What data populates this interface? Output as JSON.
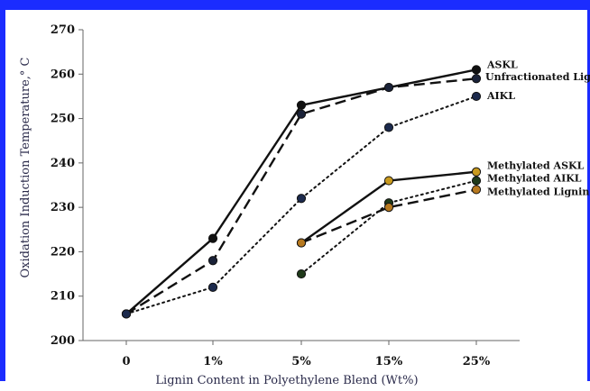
{
  "chart_data": {
    "type": "line",
    "categories": [
      "0",
      "1%",
      "5%",
      "15%",
      "25%"
    ],
    "xlabel": "Lignin Content in Polyethylene Blend (Wt%)",
    "ylabel": "Oxidation Induction Temperature,° C",
    "ylim": [
      200,
      270
    ],
    "yticks": [
      200,
      210,
      220,
      230,
      240,
      250,
      260,
      270
    ],
    "grid": false,
    "series": [
      {
        "name": "ASKL",
        "values": [
          206,
          223,
          253,
          257,
          261
        ],
        "line": "solid",
        "marker_color": "#111111"
      },
      {
        "name": "Unfractionated Lignin",
        "values": [
          206,
          218,
          251,
          257,
          259
        ],
        "line": "dashed",
        "marker_color": "#1a2238"
      },
      {
        "name": "AIKL",
        "values": [
          206,
          212,
          232,
          248,
          255
        ],
        "line": "dotted",
        "marker_color": "#1c2a4d"
      },
      {
        "name": "Methylated ASKL",
        "values": [
          null,
          null,
          222,
          236,
          238
        ],
        "line": "solid",
        "marker_color": "#c99a1e"
      },
      {
        "name": "Methylated AIKL",
        "values": [
          null,
          null,
          215,
          231,
          236
        ],
        "line": "dotted",
        "marker_color": "#1f3a1a"
      },
      {
        "name": "Methylated Lignin",
        "values": [
          null,
          null,
          222,
          230,
          234
        ],
        "line": "dashed",
        "marker_color": "#b7791f"
      }
    ]
  }
}
